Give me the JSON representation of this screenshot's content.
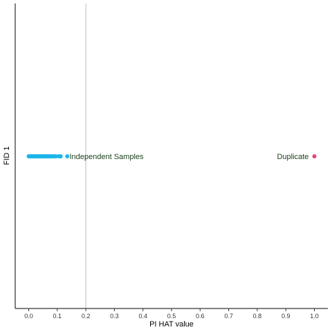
{
  "chart_data": {
    "type": "scatter",
    "xlabel": "PI HAT value",
    "ylabel": "FID 1",
    "xlim": [
      -0.05,
      1.05
    ],
    "xticks": [
      "0.0",
      "0.1",
      "0.2",
      "0.3",
      "0.4",
      "0.5",
      "0.6",
      "0.7",
      "0.8",
      "0.9",
      "1.0"
    ],
    "xtick_values": [
      0.0,
      0.1,
      0.2,
      0.3,
      0.4,
      0.5,
      0.6,
      0.7,
      0.8,
      0.9,
      1.0
    ],
    "threshold_x": 0.2,
    "grid": false,
    "series": [
      {
        "color": "#1cb5ea",
        "x": [
          0.0,
          0.003,
          0.006,
          0.009,
          0.012,
          0.015,
          0.018,
          0.021,
          0.024,
          0.027,
          0.03,
          0.033,
          0.036,
          0.039,
          0.042,
          0.045,
          0.048,
          0.051,
          0.054,
          0.057,
          0.06,
          0.063,
          0.066,
          0.069,
          0.072,
          0.075,
          0.078,
          0.081,
          0.085,
          0.09,
          0.095,
          0.105,
          0.112,
          0.135
        ]
      },
      {
        "color": "#e8457a",
        "x": [
          1.0
        ]
      }
    ],
    "annotations": [
      {
        "text": "Independent Samples",
        "x": 0.138
      },
      {
        "text": "Duplicate",
        "x": 0.985
      }
    ]
  }
}
